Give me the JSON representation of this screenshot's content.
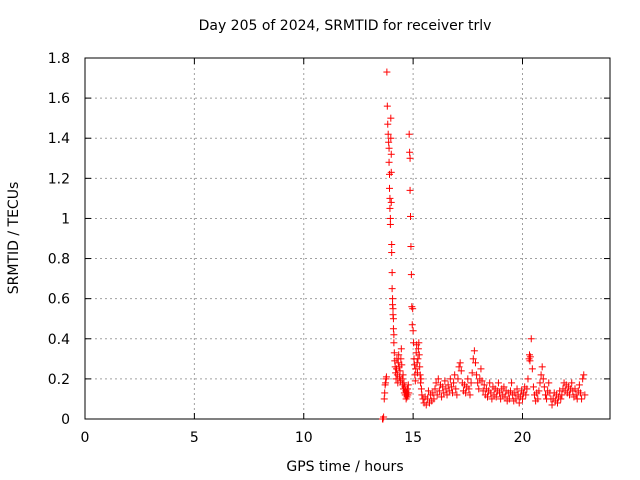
{
  "chart_data": {
    "type": "scatter",
    "title": "Day 205 of 2024, SRMTID for receiver trlv",
    "xlabel": "GPS time / hours",
    "ylabel": "SRMTID / TECUs",
    "xlim": [
      0,
      24
    ],
    "ylim": [
      0,
      1.8
    ],
    "xticks": [
      0,
      5,
      10,
      15,
      20
    ],
    "yticks": [
      0,
      0.2,
      0.4,
      0.6,
      0.8,
      1,
      1.2,
      1.4,
      1.6,
      1.8
    ],
    "xtick_labels": [
      "0",
      "5",
      "10",
      "15",
      "20"
    ],
    "ytick_labels": [
      "0",
      "0.2",
      "0.4",
      "0.6",
      "0.8",
      "1",
      "1.2",
      "1.4",
      "1.6",
      "1.8"
    ],
    "grid": true,
    "marker": "+",
    "series": [
      {
        "name": "SRMTID",
        "color": "#ff0000",
        "points": [
          [
            13.6,
            0.0
          ],
          [
            13.62,
            0.0
          ],
          [
            13.65,
            0.01
          ],
          [
            13.68,
            0.1
          ],
          [
            13.7,
            0.13
          ],
          [
            13.72,
            0.17
          ],
          [
            13.74,
            0.18
          ],
          [
            13.76,
            0.2
          ],
          [
            13.78,
            0.21
          ],
          [
            13.8,
            1.73
          ],
          [
            13.82,
            1.56
          ],
          [
            13.84,
            1.47
          ],
          [
            13.86,
            1.42
          ],
          [
            13.88,
            1.38
          ],
          [
            13.9,
            1.35
          ],
          [
            13.9,
            1.28
          ],
          [
            13.92,
            1.22
          ],
          [
            13.92,
            1.15
          ],
          [
            13.94,
            1.1
          ],
          [
            13.94,
            1.05
          ],
          [
            13.96,
            1.0
          ],
          [
            13.96,
            0.97
          ],
          [
            13.98,
            1.5
          ],
          [
            13.98,
            1.4
          ],
          [
            14.0,
            1.32
          ],
          [
            14.0,
            1.23
          ],
          [
            14.0,
            1.08
          ],
          [
            14.02,
            0.87
          ],
          [
            14.02,
            0.83
          ],
          [
            14.04,
            0.73
          ],
          [
            14.04,
            0.65
          ],
          [
            14.06,
            0.6
          ],
          [
            14.06,
            0.57
          ],
          [
            14.08,
            0.55
          ],
          [
            14.08,
            0.52
          ],
          [
            14.1,
            0.5
          ],
          [
            14.1,
            0.45
          ],
          [
            14.12,
            0.42
          ],
          [
            14.12,
            0.38
          ],
          [
            14.14,
            0.33
          ],
          [
            14.16,
            0.29
          ],
          [
            14.18,
            0.26
          ],
          [
            14.2,
            0.23
          ],
          [
            14.22,
            0.2
          ],
          [
            14.24,
            0.25
          ],
          [
            14.26,
            0.3
          ],
          [
            14.28,
            0.22
          ],
          [
            14.3,
            0.18
          ],
          [
            14.32,
            0.28
          ],
          [
            14.34,
            0.32
          ],
          [
            14.36,
            0.26
          ],
          [
            14.38,
            0.21
          ],
          [
            14.4,
            0.24
          ],
          [
            14.42,
            0.19
          ],
          [
            14.44,
            0.3
          ],
          [
            14.46,
            0.35
          ],
          [
            14.48,
            0.27
          ],
          [
            14.5,
            0.2
          ],
          [
            14.52,
            0.17
          ],
          [
            14.54,
            0.22
          ],
          [
            14.56,
            0.15
          ],
          [
            14.58,
            0.18
          ],
          [
            14.6,
            0.13
          ],
          [
            14.62,
            0.16
          ],
          [
            14.64,
            0.12
          ],
          [
            14.66,
            0.14
          ],
          [
            14.68,
            0.1
          ],
          [
            14.7,
            0.13
          ],
          [
            14.72,
            0.11
          ],
          [
            14.74,
            0.15
          ],
          [
            14.76,
            0.12
          ],
          [
            14.78,
            0.17
          ],
          [
            14.8,
            0.13
          ],
          [
            14.82,
            1.42
          ],
          [
            14.84,
            1.33
          ],
          [
            14.86,
            1.3
          ],
          [
            14.86,
            1.14
          ],
          [
            14.88,
            1.01
          ],
          [
            14.9,
            0.86
          ],
          [
            14.92,
            0.72
          ],
          [
            14.94,
            0.56
          ],
          [
            14.96,
            0.47
          ],
          [
            14.98,
            0.55
          ],
          [
            15.0,
            0.44
          ],
          [
            15.02,
            0.38
          ],
          [
            15.04,
            0.3
          ],
          [
            15.06,
            0.27
          ],
          [
            15.08,
            0.22
          ],
          [
            15.1,
            0.19
          ],
          [
            15.12,
            0.25
          ],
          [
            15.14,
            0.33
          ],
          [
            15.16,
            0.37
          ],
          [
            15.18,
            0.28
          ],
          [
            15.2,
            0.23
          ],
          [
            15.22,
            0.3
          ],
          [
            15.24,
            0.35
          ],
          [
            15.26,
            0.38
          ],
          [
            15.28,
            0.32
          ],
          [
            15.3,
            0.26
          ],
          [
            15.32,
            0.22
          ],
          [
            15.34,
            0.18
          ],
          [
            15.36,
            0.2
          ],
          [
            15.38,
            0.15
          ],
          [
            15.4,
            0.12
          ],
          [
            15.45,
            0.1
          ],
          [
            15.5,
            0.08
          ],
          [
            15.55,
            0.11
          ],
          [
            15.6,
            0.07
          ],
          [
            15.65,
            0.1
          ],
          [
            15.7,
            0.14
          ],
          [
            15.75,
            0.08
          ],
          [
            15.8,
            0.12
          ],
          [
            15.85,
            0.09
          ],
          [
            15.9,
            0.13
          ],
          [
            15.95,
            0.1
          ],
          [
            16.0,
            0.15
          ],
          [
            16.05,
            0.18
          ],
          [
            16.1,
            0.12
          ],
          [
            16.15,
            0.2
          ],
          [
            16.2,
            0.14
          ],
          [
            16.25,
            0.17
          ],
          [
            16.3,
            0.11
          ],
          [
            16.35,
            0.16
          ],
          [
            16.4,
            0.13
          ],
          [
            16.45,
            0.19
          ],
          [
            16.5,
            0.15
          ],
          [
            16.55,
            0.12
          ],
          [
            16.6,
            0.17
          ],
          [
            16.65,
            0.14
          ],
          [
            16.7,
            0.2
          ],
          [
            16.75,
            0.16
          ],
          [
            16.8,
            0.13
          ],
          [
            16.85,
            0.18
          ],
          [
            16.9,
            0.22
          ],
          [
            16.95,
            0.15
          ],
          [
            17.0,
            0.12
          ],
          [
            17.05,
            0.2
          ],
          [
            17.1,
            0.26
          ],
          [
            17.15,
            0.28
          ],
          [
            17.2,
            0.24
          ],
          [
            17.25,
            0.18
          ],
          [
            17.3,
            0.14
          ],
          [
            17.35,
            0.17
          ],
          [
            17.4,
            0.13
          ],
          [
            17.45,
            0.16
          ],
          [
            17.5,
            0.2
          ],
          [
            17.55,
            0.15
          ],
          [
            17.6,
            0.12
          ],
          [
            17.65,
            0.18
          ],
          [
            17.7,
            0.23
          ],
          [
            17.75,
            0.3
          ],
          [
            17.8,
            0.34
          ],
          [
            17.85,
            0.28
          ],
          [
            17.9,
            0.22
          ],
          [
            17.95,
            0.18
          ],
          [
            18.0,
            0.15
          ],
          [
            18.05,
            0.2
          ],
          [
            18.1,
            0.25
          ],
          [
            18.15,
            0.19
          ],
          [
            18.2,
            0.14
          ],
          [
            18.25,
            0.17
          ],
          [
            18.3,
            0.12
          ],
          [
            18.35,
            0.15
          ],
          [
            18.4,
            0.11
          ],
          [
            18.45,
            0.14
          ],
          [
            18.5,
            0.18
          ],
          [
            18.55,
            0.13
          ],
          [
            18.6,
            0.1
          ],
          [
            18.65,
            0.16
          ],
          [
            18.7,
            0.12
          ],
          [
            18.75,
            0.15
          ],
          [
            18.8,
            0.11
          ],
          [
            18.85,
            0.14
          ],
          [
            18.9,
            0.18
          ],
          [
            18.95,
            0.13
          ],
          [
            19.0,
            0.1
          ],
          [
            19.05,
            0.15
          ],
          [
            19.1,
            0.12
          ],
          [
            19.15,
            0.16
          ],
          [
            19.2,
            0.11
          ],
          [
            19.25,
            0.14
          ],
          [
            19.3,
            0.09
          ],
          [
            19.35,
            0.13
          ],
          [
            19.4,
            0.1
          ],
          [
            19.45,
            0.14
          ],
          [
            19.5,
            0.18
          ],
          [
            19.55,
            0.12
          ],
          [
            19.6,
            0.09
          ],
          [
            19.65,
            0.13
          ],
          [
            19.7,
            0.1
          ],
          [
            19.75,
            0.15
          ],
          [
            19.8,
            0.12
          ],
          [
            19.85,
            0.08
          ],
          [
            19.9,
            0.11
          ],
          [
            19.95,
            0.14
          ],
          [
            20.0,
            0.1
          ],
          [
            20.05,
            0.13
          ],
          [
            20.1,
            0.16
          ],
          [
            20.15,
            0.12
          ],
          [
            20.2,
            0.15
          ],
          [
            20.25,
            0.2
          ],
          [
            20.3,
            0.3
          ],
          [
            20.32,
            0.32
          ],
          [
            20.34,
            0.29
          ],
          [
            20.36,
            0.31
          ],
          [
            20.4,
            0.4
          ],
          [
            20.45,
            0.25
          ],
          [
            20.5,
            0.16
          ],
          [
            20.55,
            0.12
          ],
          [
            20.6,
            0.09
          ],
          [
            20.65,
            0.13
          ],
          [
            20.7,
            0.1
          ],
          [
            20.75,
            0.14
          ],
          [
            20.8,
            0.18
          ],
          [
            20.85,
            0.22
          ],
          [
            20.9,
            0.26
          ],
          [
            20.95,
            0.2
          ],
          [
            21.0,
            0.16
          ],
          [
            21.05,
            0.12
          ],
          [
            21.1,
            0.1
          ],
          [
            21.15,
            0.14
          ],
          [
            21.2,
            0.18
          ],
          [
            21.25,
            0.13
          ],
          [
            21.3,
            0.1
          ],
          [
            21.35,
            0.07
          ],
          [
            21.4,
            0.1
          ],
          [
            21.45,
            0.13
          ],
          [
            21.5,
            0.09
          ],
          [
            21.55,
            0.12
          ],
          [
            21.6,
            0.08
          ],
          [
            21.65,
            0.11
          ],
          [
            21.7,
            0.14
          ],
          [
            21.75,
            0.1
          ],
          [
            21.8,
            0.12
          ],
          [
            21.85,
            0.15
          ],
          [
            21.9,
            0.18
          ],
          [
            21.95,
            0.14
          ],
          [
            22.0,
            0.17
          ],
          [
            22.05,
            0.13
          ],
          [
            22.1,
            0.16
          ],
          [
            22.15,
            0.12
          ],
          [
            22.2,
            0.15
          ],
          [
            22.25,
            0.18
          ],
          [
            22.3,
            0.14
          ],
          [
            22.35,
            0.11
          ],
          [
            22.4,
            0.15
          ],
          [
            22.45,
            0.12
          ],
          [
            22.5,
            0.1
          ],
          [
            22.55,
            0.14
          ],
          [
            22.6,
            0.17
          ],
          [
            22.65,
            0.13
          ],
          [
            22.7,
            0.1
          ],
          [
            22.75,
            0.2
          ],
          [
            22.8,
            0.22
          ],
          [
            22.85,
            0.12
          ]
        ]
      }
    ]
  }
}
